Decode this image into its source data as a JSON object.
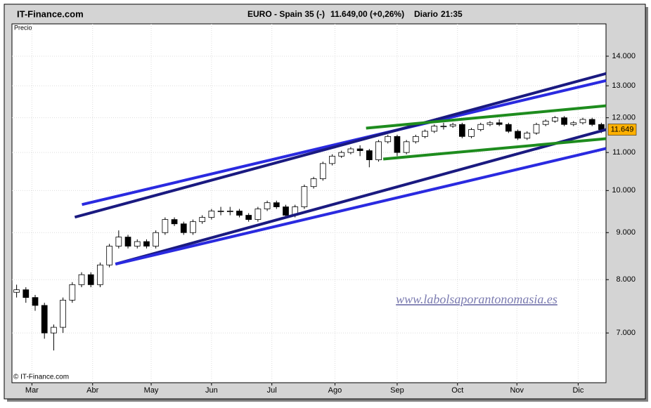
{
  "header": {
    "site": "IT-Finance.com",
    "instrument": "EURO - Spain 35 (-)",
    "quote": "11.649,00 (+0,26%)",
    "period": "Diario",
    "time": "21:35"
  },
  "chart_data": {
    "type": "candlestick",
    "panel_label": "Precio",
    "copyright": "© IT-Finance.com",
    "watermark": "www.labolsaporantonomasia.es",
    "log_scale": true,
    "grid": true,
    "up_color": "#ffffff",
    "down_color": "#000000",
    "xlim": [
      0,
      64
    ],
    "xticks": [
      {
        "value": 2.15,
        "label": "Mar"
      },
      {
        "value": 8.69,
        "label": "Abr"
      },
      {
        "value": 15.0,
        "label": "May"
      },
      {
        "value": 21.5,
        "label": "Jun"
      },
      {
        "value": 28.0,
        "label": "Jul"
      },
      {
        "value": 34.8,
        "label": "Ago"
      },
      {
        "value": 41.5,
        "label": "Sep"
      },
      {
        "value": 48.0,
        "label": "Oct"
      },
      {
        "value": 54.4,
        "label": "Nov"
      },
      {
        "value": 61.0,
        "label": "Dic"
      }
    ],
    "ylim": [
      6180,
      15180
    ],
    "yticks": [
      {
        "value": 7000,
        "label": "7.000"
      },
      {
        "value": 8000,
        "label": "8.000"
      },
      {
        "value": 9000,
        "label": "9.000"
      },
      {
        "value": 10000,
        "label": "10.000"
      },
      {
        "value": 11000,
        "label": "11.000"
      },
      {
        "value": 12000,
        "label": "12.000"
      },
      {
        "value": 13000,
        "label": "13.000"
      },
      {
        "value": 14000,
        "label": "14.000"
      }
    ],
    "open": [
      7750,
      7800,
      7650,
      7500,
      7000,
      7100,
      7600,
      7900,
      8100,
      7900,
      8300,
      8700,
      8900,
      8700,
      8800,
      8700,
      9000,
      9300,
      9200,
      9000,
      9250,
      9350,
      9500,
      9500,
      9500,
      9400,
      9300,
      9550,
      9700,
      9600,
      9400,
      9600,
      10100,
      10300,
      10700,
      10900,
      11000,
      11100,
      11050,
      10800,
      11300,
      11450,
      11000,
      11300,
      11450,
      11600,
      11750,
      11750,
      11800,
      11450,
      11650,
      11800,
      11850,
      11800,
      11600,
      11400,
      11550,
      11800,
      11900,
      12000,
      11800,
      11850,
      11950,
      11800
    ],
    "high": [
      7900,
      7850,
      7700,
      7550,
      7150,
      7650,
      7950,
      8150,
      8150,
      8350,
      8750,
      9050,
      8950,
      8850,
      8850,
      9050,
      9350,
      9350,
      9250,
      9300,
      9400,
      9550,
      9600,
      9600,
      9550,
      9450,
      9600,
      9750,
      9750,
      9650,
      9650,
      10150,
      10350,
      10750,
      10950,
      11050,
      11150,
      11200,
      11100,
      11350,
      11500,
      11500,
      11350,
      11500,
      11650,
      11800,
      11850,
      11850,
      11850,
      11700,
      11850,
      11900,
      11950,
      11850,
      11650,
      11600,
      11850,
      11950,
      12050,
      12050,
      11900,
      12000,
      12000,
      11850
    ],
    "low": [
      7650,
      7550,
      7400,
      6900,
      6700,
      7000,
      7550,
      7850,
      7850,
      7850,
      8250,
      8650,
      8650,
      8650,
      8650,
      8650,
      8950,
      9150,
      8950,
      8950,
      9200,
      9300,
      9400,
      9400,
      9350,
      9250,
      9250,
      9500,
      9550,
      9350,
      9350,
      9550,
      10050,
      10250,
      10650,
      10850,
      10950,
      10900,
      10600,
      10750,
      11250,
      10900,
      10950,
      11250,
      11400,
      11550,
      11650,
      11700,
      11400,
      11400,
      11600,
      11750,
      11750,
      11550,
      11350,
      11350,
      11500,
      11750,
      11850,
      11750,
      11750,
      11800,
      11750,
      11550
    ],
    "close": [
      7800,
      7650,
      7500,
      7000,
      7100,
      7600,
      7900,
      8100,
      7900,
      8300,
      8700,
      8900,
      8700,
      8800,
      8700,
      9000,
      9300,
      9200,
      9000,
      9250,
      9350,
      9500,
      9500,
      9500,
      9400,
      9300,
      9550,
      9700,
      9600,
      9400,
      9600,
      10100,
      10300,
      10700,
      10900,
      11000,
      11100,
      11050,
      10800,
      11300,
      11450,
      11000,
      11300,
      11450,
      11600,
      11750,
      11750,
      11800,
      11450,
      11650,
      11800,
      11850,
      11800,
      11600,
      11400,
      11550,
      11800,
      11900,
      12000,
      11800,
      11850,
      11950,
      11800,
      11649
    ],
    "last_price": {
      "value": 11649,
      "label": "11.649",
      "color": "#ffb000"
    },
    "trendlines": [
      {
        "color": "#2a2ae0",
        "x": [
          7.54,
          64
        ],
        "y": [
          9655,
          13170
        ]
      },
      {
        "color": "#1a1a80",
        "x": [
          6.77,
          64
        ],
        "y": [
          9355,
          13404
        ]
      },
      {
        "color": "#1a1a80",
        "x": [
          11.15,
          64
        ],
        "y": [
          8318,
          11649
        ]
      },
      {
        "color": "#2a2ae0",
        "x": [
          11.15,
          64
        ],
        "y": [
          8318,
          11110
        ]
      },
      {
        "color": "#1e8c1e",
        "x": [
          38.15,
          64
        ],
        "y": [
          11690,
          12365
        ]
      },
      {
        "color": "#1e8c1e",
        "x": [
          40,
          64
        ],
        "y": [
          10821,
          11386
        ]
      }
    ]
  }
}
